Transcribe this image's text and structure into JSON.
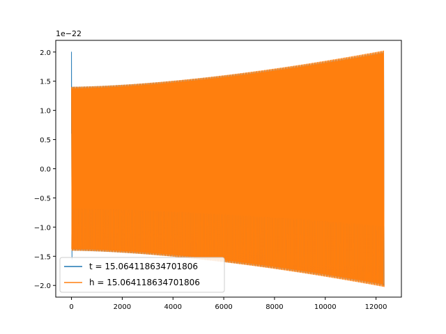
{
  "chart_data": {
    "type": "line",
    "title": "",
    "xlabel": "",
    "ylabel": "",
    "y_scale_label": "1e−22",
    "y_scale_factor": 1e-22,
    "xlim": [
      -620,
      13000
    ],
    "ylim": [
      -2.2,
      2.2
    ],
    "x_ticks": [
      0,
      2000,
      4000,
      6000,
      8000,
      10000,
      12000
    ],
    "x_tick_labels": [
      "0",
      "2000",
      "4000",
      "6000",
      "8000",
      "10000",
      "12000"
    ],
    "y_ticks": [
      2.0,
      1.5,
      1.0,
      0.5,
      0.0,
      -0.5,
      -1.0,
      -1.5,
      -2.0
    ],
    "y_tick_labels": [
      "2.0",
      "1.5",
      "1.0",
      "0.5",
      "0.0",
      "−0.5",
      "−1.0",
      "−1.5",
      "−2.0"
    ],
    "grid": false,
    "legend_position": "lower-left",
    "series": [
      {
        "name": "t = 15.064118634701806",
        "color": "#1f77b4",
        "x_range": [
          0,
          12300
        ],
        "envelope": {
          "start": 1.4,
          "end": 2.0
        },
        "initial_spike": {
          "x": 0,
          "max": 2.0,
          "min": -1.55
        },
        "cycles": 330
      },
      {
        "name": "h = 15.064118634701806",
        "color": "#ff7f0e",
        "x_range": [
          0,
          12300
        ],
        "envelope": {
          "start": 1.4,
          "end": 2.02
        },
        "cycles": 330
      }
    ]
  }
}
